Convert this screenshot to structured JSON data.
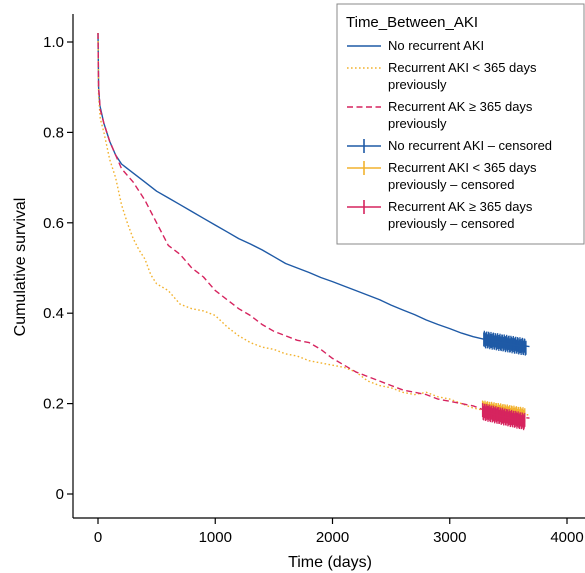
{
  "chart_data": {
    "type": "line",
    "title": "",
    "xlabel": "Time (days)",
    "ylabel": "Cumulative survival",
    "xlim": [
      0,
      4000
    ],
    "ylim": [
      0,
      1.0
    ],
    "xticks": [
      0,
      1000,
      2000,
      3000,
      4000
    ],
    "yticks": [
      0,
      0.2,
      0.4,
      0.6,
      0.8,
      1.0
    ],
    "xtick_labels": [
      "0",
      "1000",
      "2000",
      "3000",
      "4000"
    ],
    "ytick_labels": [
      "0",
      "0.2",
      "0.4",
      "0.6",
      "0.8",
      "1.0"
    ],
    "grid": false,
    "legend": {
      "title": "Time_Between_AKI",
      "placement": "top-right",
      "entries": [
        {
          "lines": [
            "No recurrent AKI"
          ],
          "style": "solid",
          "color": "#1f5aa6"
        },
        {
          "lines": [
            "Recurrent AKI < 365 days",
            "previously"
          ],
          "style": "dotted",
          "color": "#f2b22e"
        },
        {
          "lines": [
            "Recurrent AK ≥ 365 days",
            "previously"
          ],
          "style": "dashed",
          "color": "#d6245f"
        },
        {
          "lines": [
            "No recurrent AKI – censored"
          ],
          "style": "censor",
          "color": "#1f5aa6"
        },
        {
          "lines": [
            "Recurrent AKI < 365 days",
            "previously – censored"
          ],
          "style": "censor",
          "color": "#f2b22e"
        },
        {
          "lines": [
            "Recurrent AK ≥ 365 days",
            "previously – censored"
          ],
          "style": "censor",
          "color": "#d6245f"
        }
      ]
    },
    "series": [
      {
        "name": "No recurrent AKI",
        "color": "#1f5aa6",
        "style": "solid",
        "points": [
          [
            0,
            1.02
          ],
          [
            5,
            0.9
          ],
          [
            15,
            0.86
          ],
          [
            50,
            0.82
          ],
          [
            100,
            0.78
          ],
          [
            150,
            0.75
          ],
          [
            200,
            0.73
          ],
          [
            300,
            0.71
          ],
          [
            400,
            0.69
          ],
          [
            500,
            0.67
          ],
          [
            600,
            0.655
          ],
          [
            700,
            0.64
          ],
          [
            800,
            0.625
          ],
          [
            900,
            0.61
          ],
          [
            1000,
            0.595
          ],
          [
            1100,
            0.58
          ],
          [
            1200,
            0.565
          ],
          [
            1300,
            0.553
          ],
          [
            1400,
            0.54
          ],
          [
            1500,
            0.525
          ],
          [
            1600,
            0.51
          ],
          [
            1700,
            0.5
          ],
          [
            1800,
            0.49
          ],
          [
            1900,
            0.479
          ],
          [
            2000,
            0.47
          ],
          [
            2100,
            0.46
          ],
          [
            2200,
            0.45
          ],
          [
            2300,
            0.44
          ],
          [
            2400,
            0.43
          ],
          [
            2500,
            0.418
          ],
          [
            2600,
            0.407
          ],
          [
            2700,
            0.397
          ],
          [
            2800,
            0.385
          ],
          [
            2900,
            0.375
          ],
          [
            3000,
            0.366
          ],
          [
            3100,
            0.356
          ],
          [
            3200,
            0.348
          ],
          [
            3300,
            0.342
          ],
          [
            3400,
            0.338
          ],
          [
            3500,
            0.334
          ],
          [
            3600,
            0.329
          ],
          [
            3680,
            0.326
          ]
        ],
        "censored": {
          "from": 3290,
          "to": 3650,
          "values": [
            0.342,
            0.325
          ]
        }
      },
      {
        "name": "Recurrent AKI < 365 days previously",
        "color": "#f2b22e",
        "style": "dotted",
        "points": [
          [
            0,
            1.02
          ],
          [
            5,
            0.88
          ],
          [
            20,
            0.83
          ],
          [
            50,
            0.8
          ],
          [
            100,
            0.74
          ],
          [
            150,
            0.7
          ],
          [
            200,
            0.64
          ],
          [
            250,
            0.6
          ],
          [
            300,
            0.565
          ],
          [
            350,
            0.54
          ],
          [
            400,
            0.52
          ],
          [
            450,
            0.485
          ],
          [
            500,
            0.465
          ],
          [
            600,
            0.45
          ],
          [
            700,
            0.42
          ],
          [
            800,
            0.41
          ],
          [
            900,
            0.405
          ],
          [
            1000,
            0.395
          ],
          [
            1100,
            0.37
          ],
          [
            1200,
            0.35
          ],
          [
            1300,
            0.335
          ],
          [
            1400,
            0.325
          ],
          [
            1500,
            0.32
          ],
          [
            1600,
            0.31
          ],
          [
            1700,
            0.305
          ],
          [
            1800,
            0.295
          ],
          [
            1900,
            0.29
          ],
          [
            2000,
            0.285
          ],
          [
            2100,
            0.28
          ],
          [
            2200,
            0.27
          ],
          [
            2300,
            0.25
          ],
          [
            2400,
            0.24
          ],
          [
            2500,
            0.235
          ],
          [
            2600,
            0.225
          ],
          [
            2700,
            0.22
          ],
          [
            2800,
            0.225
          ],
          [
            2900,
            0.215
          ],
          [
            3000,
            0.21
          ],
          [
            3100,
            0.2
          ],
          [
            3200,
            0.19
          ],
          [
            3300,
            0.185
          ],
          [
            3400,
            0.18
          ],
          [
            3500,
            0.178
          ],
          [
            3600,
            0.176
          ],
          [
            3680,
            0.175
          ]
        ],
        "censored": {
          "from": 3280,
          "to": 3640,
          "values": [
            0.188,
            0.172
          ]
        }
      },
      {
        "name": "Recurrent AK ≥ 365 days previously",
        "color": "#d6245f",
        "style": "dashed",
        "points": [
          [
            0,
            1.02
          ],
          [
            5,
            0.9
          ],
          [
            20,
            0.85
          ],
          [
            50,
            0.82
          ],
          [
            100,
            0.78
          ],
          [
            150,
            0.75
          ],
          [
            200,
            0.72
          ],
          [
            300,
            0.69
          ],
          [
            400,
            0.65
          ],
          [
            500,
            0.6
          ],
          [
            600,
            0.55
          ],
          [
            700,
            0.53
          ],
          [
            800,
            0.5
          ],
          [
            900,
            0.48
          ],
          [
            1000,
            0.45
          ],
          [
            1100,
            0.43
          ],
          [
            1200,
            0.41
          ],
          [
            1300,
            0.395
          ],
          [
            1400,
            0.375
          ],
          [
            1500,
            0.36
          ],
          [
            1600,
            0.35
          ],
          [
            1700,
            0.34
          ],
          [
            1800,
            0.335
          ],
          [
            1900,
            0.32
          ],
          [
            2000,
            0.3
          ],
          [
            2100,
            0.285
          ],
          [
            2200,
            0.27
          ],
          [
            2300,
            0.26
          ],
          [
            2400,
            0.25
          ],
          [
            2500,
            0.24
          ],
          [
            2600,
            0.23
          ],
          [
            2700,
            0.225
          ],
          [
            2800,
            0.22
          ],
          [
            2900,
            0.21
          ],
          [
            3000,
            0.205
          ],
          [
            3100,
            0.2
          ],
          [
            3200,
            0.195
          ],
          [
            3300,
            0.185
          ],
          [
            3400,
            0.18
          ],
          [
            3500,
            0.175
          ],
          [
            3600,
            0.17
          ],
          [
            3680,
            0.168
          ]
        ],
        "censored": {
          "from": 3280,
          "to": 3640,
          "values": [
            0.182,
            0.16
          ]
        }
      }
    ]
  }
}
